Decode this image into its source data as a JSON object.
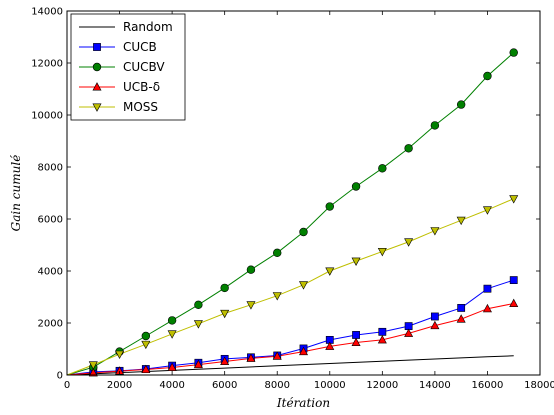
{
  "chart_data": {
    "type": "line",
    "title": "",
    "xlabel": "Itération",
    "ylabel": "Gain cumulé",
    "xlim": [
      0,
      18000
    ],
    "ylim": [
      0,
      14000
    ],
    "x_ticks": [
      0,
      2000,
      4000,
      6000,
      8000,
      10000,
      12000,
      14000,
      16000,
      18000
    ],
    "y_ticks": [
      0,
      2000,
      4000,
      6000,
      8000,
      10000,
      12000,
      14000
    ],
    "grid": false,
    "legend_position": "top-left",
    "series": [
      {
        "name": "Random",
        "color": "#000000",
        "marker": "none",
        "x": [
          0,
          2000,
          4000,
          6000,
          8000,
          10000,
          12000,
          14000,
          16000,
          17000
        ],
        "y": [
          0,
          90,
          180,
          265,
          355,
          440,
          530,
          615,
          700,
          740
        ]
      },
      {
        "name": "CUCB",
        "color": "#0000ff",
        "marker": "square",
        "x": [
          1000,
          2000,
          3000,
          4000,
          5000,
          6000,
          7000,
          8000,
          9000,
          10000,
          11000,
          12000,
          13000,
          14000,
          15000,
          16000,
          17000
        ],
        "y": [
          120,
          160,
          230,
          360,
          470,
          620,
          680,
          750,
          1020,
          1350,
          1540,
          1660,
          1880,
          2250,
          2580,
          3320,
          3650
        ]
      },
      {
        "name": "CUCBV",
        "color": "#008000",
        "marker": "circle",
        "x": [
          1000,
          2000,
          3000,
          4000,
          5000,
          6000,
          7000,
          8000,
          9000,
          10000,
          11000,
          12000,
          13000,
          14000,
          15000,
          16000,
          17000
        ],
        "y": [
          300,
          900,
          1500,
          2100,
          2700,
          3350,
          4050,
          4700,
          5500,
          6480,
          7250,
          7950,
          8720,
          9600,
          10400,
          11500,
          12400
        ]
      },
      {
        "name": "UCB-δ",
        "color": "#ff0000",
        "marker": "triangle-up",
        "x": [
          1000,
          2000,
          3000,
          4000,
          5000,
          6000,
          7000,
          8000,
          9000,
          10000,
          11000,
          12000,
          13000,
          14000,
          15000,
          16000,
          17000
        ],
        "y": [
          80,
          150,
          210,
          290,
          400,
          520,
          640,
          720,
          900,
          1100,
          1250,
          1350,
          1600,
          1900,
          2150,
          2550,
          2750
        ]
      },
      {
        "name": "MOSS",
        "color": "#bfbf00",
        "marker": "triangle-down",
        "x": [
          1000,
          2000,
          3000,
          4000,
          5000,
          6000,
          7000,
          8000,
          9000,
          10000,
          11000,
          12000,
          13000,
          14000,
          15000,
          16000,
          17000
        ],
        "y": [
          390,
          800,
          1180,
          1580,
          1970,
          2370,
          2700,
          3050,
          3470,
          4000,
          4380,
          4750,
          5120,
          5550,
          5950,
          6350,
          6780
        ]
      }
    ]
  }
}
